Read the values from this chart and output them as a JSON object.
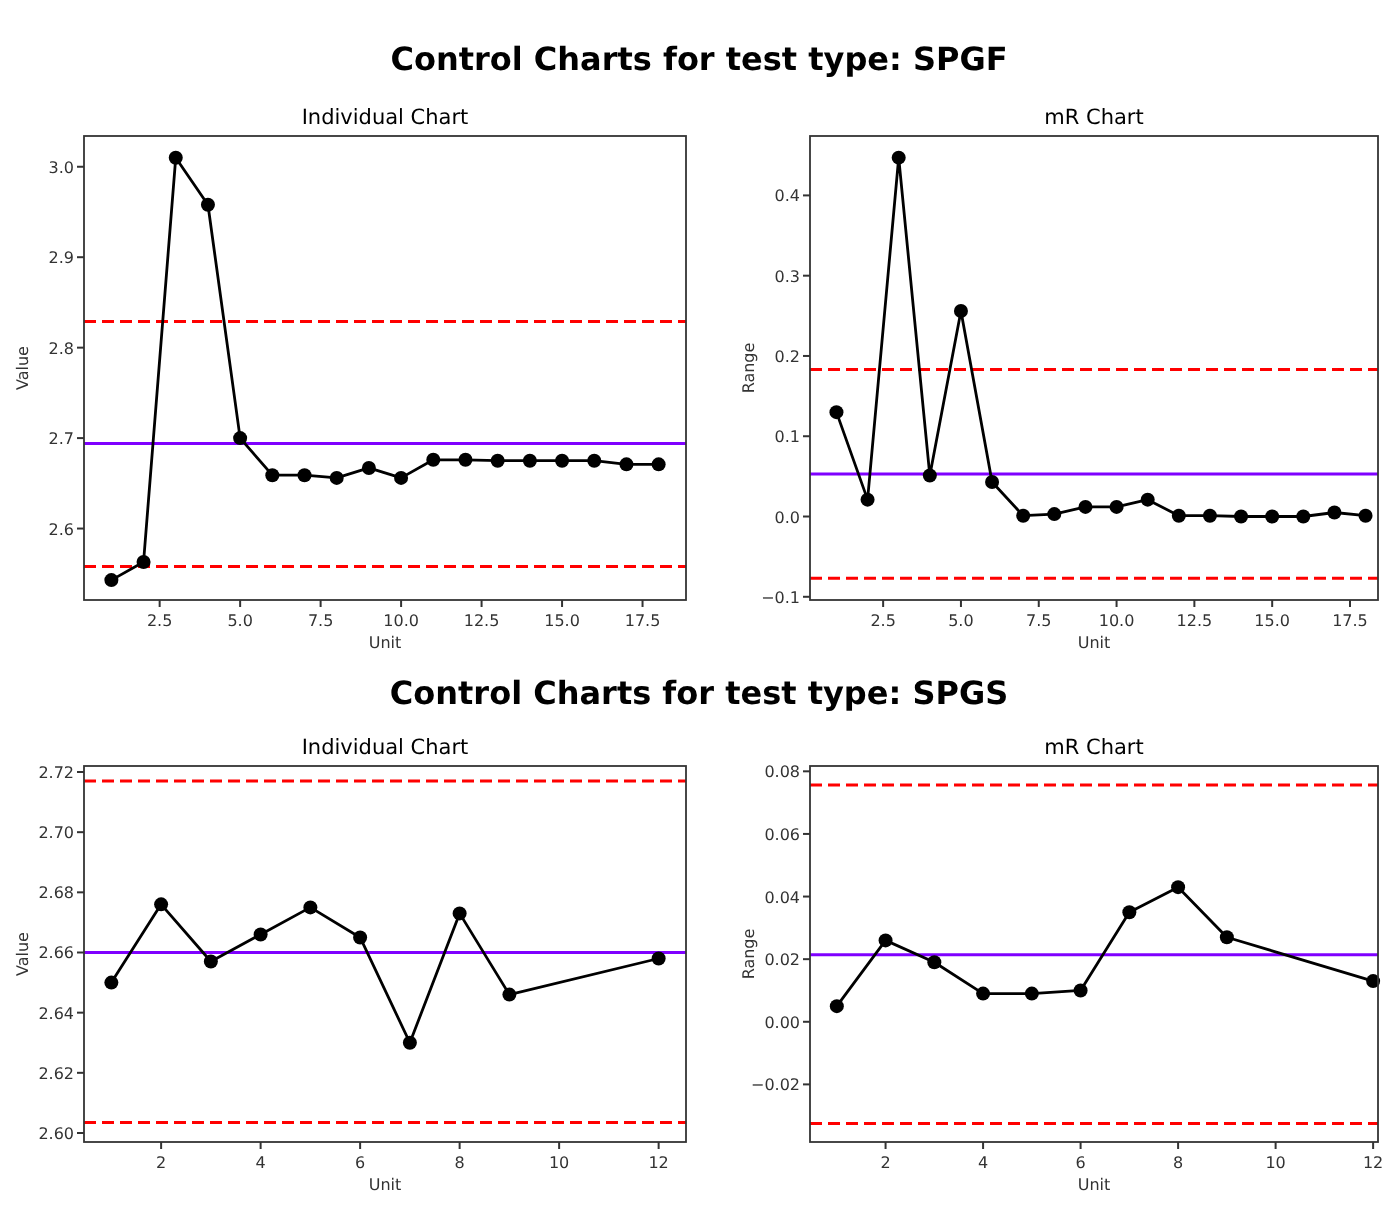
{
  "chart_data": [
    {
      "type": "line",
      "title": "Individual Chart",
      "xlabel": "Unit",
      "ylabel": "Value",
      "annotations": [
        "Control Charts for test type: SPGF"
      ],
      "x": [
        1,
        2,
        3,
        4,
        5,
        6,
        7,
        8,
        9,
        10,
        11,
        12,
        13,
        14,
        15,
        16,
        17,
        18
      ],
      "values": [
        2.543,
        2.563,
        3.01,
        2.958,
        2.7,
        2.659,
        2.659,
        2.656,
        2.667,
        2.656,
        2.676,
        2.676,
        2.675,
        2.675,
        2.675,
        2.675,
        2.671,
        2.671
      ],
      "color": "#000000",
      "marker": "circle",
      "xlim": [
        0.15,
        18.85
      ],
      "ylim": [
        2.521,
        3.034
      ],
      "xticks": [
        {
          "value": 2.5,
          "label": "2.5"
        },
        {
          "value": 5,
          "label": "5.0"
        },
        {
          "value": 7.5,
          "label": "7.5"
        },
        {
          "value": 10,
          "label": "10.0"
        },
        {
          "value": 12.5,
          "label": "12.5"
        },
        {
          "value": 15,
          "label": "15.0"
        },
        {
          "value": 17.5,
          "label": "17.5"
        }
      ],
      "yticks": [
        {
          "value": 2.6,
          "label": "2.6"
        },
        {
          "value": 2.7,
          "label": "2.7"
        },
        {
          "value": 2.8,
          "label": "2.8"
        },
        {
          "value": 2.9,
          "label": "2.9"
        },
        {
          "value": 3,
          "label": "3.0"
        }
      ],
      "ref_lines": [
        {
          "axis": "y",
          "value": 2.694,
          "color": "#7f00ff",
          "line_style": "solid"
        },
        {
          "axis": "y",
          "value": 2.829,
          "color": "#ff0000",
          "line_style": "dashed"
        },
        {
          "axis": "y",
          "value": 2.558,
          "color": "#ff0000",
          "line_style": "dashed"
        }
      ]
    },
    {
      "type": "line",
      "title": "mR Chart",
      "xlabel": "Unit",
      "ylabel": "Range",
      "x": [
        1,
        2,
        3,
        4,
        5,
        6,
        7,
        8,
        9,
        10,
        11,
        12,
        13,
        14,
        15,
        16,
        17,
        18
      ],
      "values": [
        0.13,
        0.021,
        0.447,
        0.051,
        0.256,
        0.043,
        0.001,
        0.003,
        0.012,
        0.012,
        0.021,
        0.001,
        0.001,
        0,
        0,
        0,
        0.005,
        0.001
      ],
      "color": "#000000",
      "marker": "circle",
      "xlim": [
        0.15,
        18.4
      ],
      "ylim": [
        -0.104,
        0.474
      ],
      "xticks": [
        {
          "value": 2.5,
          "label": "2.5"
        },
        {
          "value": 5,
          "label": "5.0"
        },
        {
          "value": 7.5,
          "label": "7.5"
        },
        {
          "value": 10,
          "label": "10.0"
        },
        {
          "value": 12.5,
          "label": "12.5"
        },
        {
          "value": 15,
          "label": "15.0"
        },
        {
          "value": 17.5,
          "label": "17.5"
        }
      ],
      "yticks": [
        {
          "value": -0.1,
          "label": "−0.1"
        },
        {
          "value": 0,
          "label": "0.0"
        },
        0.1,
        0.2,
        0.3,
        0.4
      ],
      "ref_lines": [
        {
          "axis": "y",
          "value": 0.053,
          "color": "#7f00ff",
          "line_style": "solid"
        },
        {
          "axis": "y",
          "value": 0.183,
          "color": "#ff0000",
          "line_style": "dashed"
        },
        {
          "axis": "y",
          "value": -0.077,
          "color": "#ff0000",
          "line_style": "dashed"
        }
      ]
    },
    {
      "type": "line",
      "title": "Individual Chart",
      "xlabel": "Unit",
      "ylabel": "Value",
      "annotations": [
        "Control Charts for test type: SPGS"
      ],
      "x": [
        1,
        2,
        3,
        4,
        5,
        6,
        7,
        8,
        9,
        12
      ],
      "values": [
        2.65,
        2.676,
        2.657,
        2.666,
        2.675,
        2.665,
        2.63,
        2.673,
        2.646,
        2.658
      ],
      "color": "#000000",
      "marker": "circle",
      "xlim": [
        0.45,
        12.55
      ],
      "ylim": [
        2.597,
        2.722
      ],
      "xticks": [
        2,
        4,
        6,
        8,
        10,
        12
      ],
      "yticks": [
        {
          "value": 2.6,
          "label": "2.60"
        },
        {
          "value": 2.62,
          "label": "2.62"
        },
        {
          "value": 2.64,
          "label": "2.64"
        },
        {
          "value": 2.66,
          "label": "2.66"
        },
        {
          "value": 2.68,
          "label": "2.68"
        },
        {
          "value": 2.7,
          "label": "2.70"
        },
        {
          "value": 2.72,
          "label": "2.72"
        }
      ],
      "ref_lines": [
        {
          "axis": "y",
          "value": 2.66,
          "color": "#7f00ff",
          "line_style": "solid"
        },
        {
          "axis": "y",
          "value": 2.717,
          "color": "#ff0000",
          "line_style": "dashed"
        },
        {
          "axis": "y",
          "value": 2.6035,
          "color": "#ff0000",
          "line_style": "dashed"
        }
      ]
    },
    {
      "type": "line",
      "title": "mR Chart",
      "xlabel": "Unit",
      "ylabel": "Range",
      "x": [
        1,
        2,
        3,
        4,
        5,
        6,
        7,
        8,
        9,
        12
      ],
      "values": [
        0.005,
        0.026,
        0.019,
        0.009,
        0.009,
        0.01,
        0.035,
        0.043,
        0.027,
        0.013
      ],
      "color": "#000000",
      "marker": "circle",
      "xlim": [
        0.45,
        12.1
      ],
      "ylim": [
        -0.0384,
        0.0817
      ],
      "xticks": [
        2,
        4,
        6,
        8,
        10,
        12
      ],
      "yticks": [
        {
          "value": -0.02,
          "label": "−0.02"
        },
        {
          "value": 0,
          "label": "0.00"
        },
        {
          "value": 0.02,
          "label": "0.02"
        },
        {
          "value": 0.04,
          "label": "0.04"
        },
        {
          "value": 0.06,
          "label": "0.06"
        },
        {
          "value": 0.08,
          "label": "0.08"
        }
      ],
      "ref_lines": [
        {
          "axis": "y",
          "value": 0.0214,
          "color": "#7f00ff",
          "line_style": "solid"
        },
        {
          "axis": "y",
          "value": 0.0756,
          "color": "#ff0000",
          "line_style": "dashed"
        },
        {
          "axis": "y",
          "value": -0.0325,
          "color": "#ff0000",
          "line_style": "dashed"
        }
      ]
    }
  ]
}
